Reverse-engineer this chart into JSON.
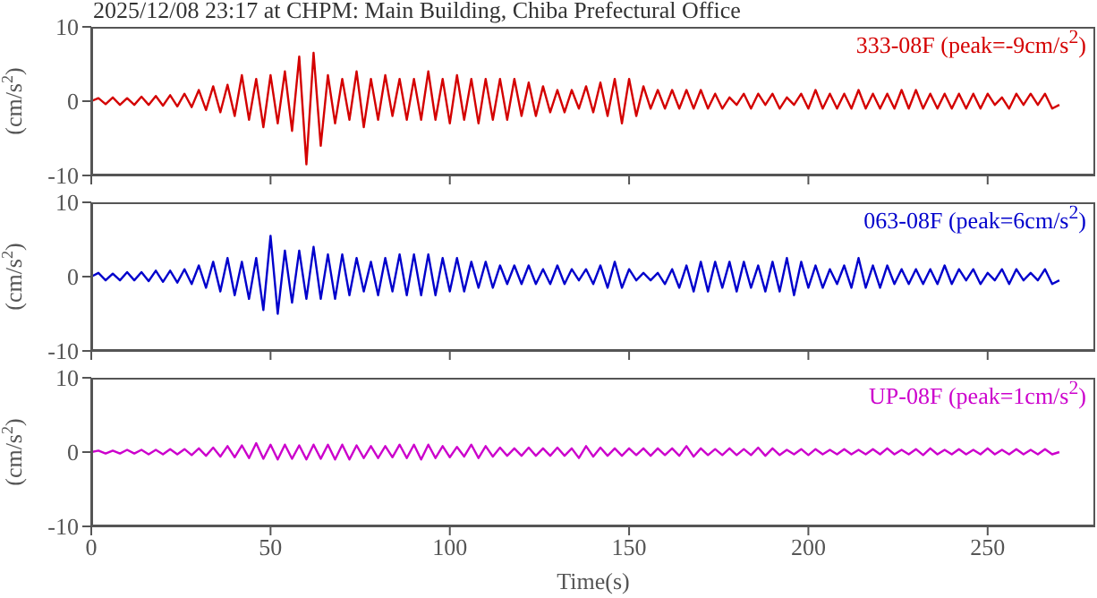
{
  "chart_data": [
    {
      "type": "line",
      "title": "2025/12/08 23:17 at CHPM: Main Building, Chiba Prefectural Office",
      "ylabel": "(cm/s$^{2}$)",
      "xlim": [
        0,
        280
      ],
      "xticks": [
        0,
        50,
        100,
        150,
        200,
        250
      ],
      "ylim": [
        -10,
        10
      ],
      "yticks": [
        -10,
        0,
        10
      ],
      "tick_labels": "y",
      "legend": false,
      "x": [
        0,
        2,
        4,
        6,
        8,
        10,
        12,
        14,
        16,
        18,
        20,
        22,
        24,
        26,
        28,
        30,
        32,
        34,
        36,
        38,
        40,
        42,
        44,
        46,
        48,
        50,
        52,
        54,
        56,
        58,
        60,
        62,
        64,
        66,
        68,
        70,
        72,
        74,
        76,
        78,
        80,
        82,
        84,
        86,
        88,
        90,
        92,
        94,
        96,
        98,
        100,
        102,
        104,
        106,
        108,
        110,
        112,
        114,
        116,
        118,
        120,
        122,
        124,
        126,
        128,
        130,
        132,
        134,
        136,
        138,
        140,
        142,
        144,
        146,
        148,
        150,
        152,
        154,
        156,
        158,
        160,
        162,
        164,
        166,
        168,
        170,
        172,
        174,
        176,
        178,
        180,
        182,
        184,
        186,
        188,
        190,
        192,
        194,
        196,
        198,
        200,
        202,
        204,
        206,
        208,
        210,
        212,
        214,
        216,
        218,
        220,
        222,
        224,
        226,
        228,
        230,
        232,
        234,
        236,
        238,
        240,
        242,
        244,
        246,
        248,
        250,
        252,
        254,
        256,
        258,
        260,
        262,
        264,
        266,
        268,
        270
      ],
      "series": [
        {
          "name": "333-08F (peak=-9cm/s$^{2}$)",
          "color": "#d40000",
          "values": [
            0,
            0.4,
            -0.4,
            0.5,
            -0.5,
            0.4,
            -0.5,
            0.6,
            -0.5,
            0.7,
            -0.6,
            0.8,
            -0.7,
            1,
            -0.8,
            1.5,
            -1.2,
            2,
            -1.5,
            2.2,
            -2,
            3.5,
            -2.5,
            3,
            -3.5,
            3.5,
            -3,
            4,
            -4,
            6,
            -8.5,
            6.5,
            -6,
            3.5,
            -3,
            3,
            -2.5,
            4,
            -3.5,
            3,
            -2.5,
            3.5,
            -2,
            3,
            -2.5,
            3,
            -2.5,
            4,
            -2.5,
            3,
            -3,
            3.5,
            -2.5,
            3,
            -3,
            3,
            -2.5,
            3,
            -2.5,
            3,
            -2,
            2.5,
            -2,
            2,
            -1.5,
            1.5,
            -1.5,
            1.5,
            -1,
            2,
            -1.5,
            2.5,
            -2,
            3,
            -3,
            3,
            -2,
            2,
            -1,
            1.5,
            -1,
            1.5,
            -1,
            1.5,
            -1,
            1.5,
            -1,
            1,
            -1,
            0.5,
            -0.5,
            1,
            -1,
            1,
            -0.5,
            1,
            -1,
            0.5,
            -0.5,
            1,
            -1,
            1.5,
            -1,
            1,
            -1,
            1,
            -1,
            1.5,
            -1,
            1,
            -1,
            1,
            -1,
            1.5,
            -1,
            1.5,
            -1,
            1,
            -1,
            1,
            -1,
            1,
            -1,
            1,
            -1,
            1,
            -0.5,
            0.5,
            -1,
            1,
            -0.5,
            1,
            -0.5,
            1,
            -1,
            -0.5
          ]
        }
      ]
    },
    {
      "type": "line",
      "ylabel": "(cm/s$^{2}$)",
      "xlim": [
        0,
        280
      ],
      "xticks": [
        0,
        50,
        100,
        150,
        200,
        250
      ],
      "ylim": [
        -10,
        10
      ],
      "yticks": [
        -10,
        0,
        10
      ],
      "tick_labels": "y",
      "legend": false,
      "x": [
        0,
        2,
        4,
        6,
        8,
        10,
        12,
        14,
        16,
        18,
        20,
        22,
        24,
        26,
        28,
        30,
        32,
        34,
        36,
        38,
        40,
        42,
        44,
        46,
        48,
        50,
        52,
        54,
        56,
        58,
        60,
        62,
        64,
        66,
        68,
        70,
        72,
        74,
        76,
        78,
        80,
        82,
        84,
        86,
        88,
        90,
        92,
        94,
        96,
        98,
        100,
        102,
        104,
        106,
        108,
        110,
        112,
        114,
        116,
        118,
        120,
        122,
        124,
        126,
        128,
        130,
        132,
        134,
        136,
        138,
        140,
        142,
        144,
        146,
        148,
        150,
        152,
        154,
        156,
        158,
        160,
        162,
        164,
        166,
        168,
        170,
        172,
        174,
        176,
        178,
        180,
        182,
        184,
        186,
        188,
        190,
        192,
        194,
        196,
        198,
        200,
        202,
        204,
        206,
        208,
        210,
        212,
        214,
        216,
        218,
        220,
        222,
        224,
        226,
        228,
        230,
        232,
        234,
        236,
        238,
        240,
        242,
        244,
        246,
        248,
        250,
        252,
        254,
        256,
        258,
        260,
        262,
        264,
        266,
        268,
        270
      ],
      "series": [
        {
          "name": "063-08F (peak=6cm/s$^{2}$)",
          "color": "#0000cc",
          "values": [
            0,
            0.5,
            -0.5,
            0.4,
            -0.5,
            0.6,
            -0.5,
            0.6,
            -0.6,
            0.8,
            -0.7,
            0.8,
            -0.8,
            1,
            -1,
            1.5,
            -1.5,
            2,
            -2,
            2.5,
            -2.5,
            2,
            -3,
            2.5,
            -4.5,
            5.5,
            -5,
            3.5,
            -3.5,
            3.5,
            -3,
            4,
            -3,
            3,
            -3,
            3,
            -2.5,
            2.5,
            -2,
            2,
            -2.5,
            2.5,
            -2,
            3,
            -2.5,
            3,
            -2.5,
            3,
            -2.5,
            2.5,
            -2,
            2.5,
            -2,
            2,
            -1.5,
            2,
            -1.5,
            1.5,
            -1,
            1.5,
            -1,
            1.5,
            -1,
            1,
            -1,
            1.5,
            -1,
            1,
            -0.5,
            1,
            -1,
            1.5,
            -1.5,
            2,
            -1.5,
            1,
            -0.5,
            0.5,
            -0.5,
            0.5,
            -1,
            1,
            -1.5,
            1.5,
            -2,
            2,
            -2,
            2,
            -1.5,
            2,
            -2,
            2,
            -1.5,
            1.5,
            -2,
            2,
            -2,
            2.5,
            -2.5,
            2,
            -1.5,
            1.5,
            -1.5,
            1,
            -1,
            1.5,
            -1.5,
            2.5,
            -1.5,
            1.5,
            -1.5,
            1.5,
            -1,
            1,
            -1,
            1,
            -1,
            1,
            -1,
            1.5,
            -1,
            1,
            -0.5,
            1,
            -1,
            0.5,
            -0.5,
            1,
            -1,
            1,
            -0.5,
            0.5,
            -0.5,
            1,
            -1,
            -0.5
          ]
        }
      ]
    },
    {
      "type": "line",
      "ylabel": "(cm/s$^{2}$)",
      "xlabel": "Time(s)",
      "xlim": [
        0,
        280
      ],
      "xticks": [
        0,
        50,
        100,
        150,
        200,
        250
      ],
      "ylim": [
        -10,
        10
      ],
      "yticks": [
        -10,
        0,
        10
      ],
      "legend": false,
      "x": [
        0,
        2,
        4,
        6,
        8,
        10,
        12,
        14,
        16,
        18,
        20,
        22,
        24,
        26,
        28,
        30,
        32,
        34,
        36,
        38,
        40,
        42,
        44,
        46,
        48,
        50,
        52,
        54,
        56,
        58,
        60,
        62,
        64,
        66,
        68,
        70,
        72,
        74,
        76,
        78,
        80,
        82,
        84,
        86,
        88,
        90,
        92,
        94,
        96,
        98,
        100,
        102,
        104,
        106,
        108,
        110,
        112,
        114,
        116,
        118,
        120,
        122,
        124,
        126,
        128,
        130,
        132,
        134,
        136,
        138,
        140,
        142,
        144,
        146,
        148,
        150,
        152,
        154,
        156,
        158,
        160,
        162,
        164,
        166,
        168,
        170,
        172,
        174,
        176,
        178,
        180,
        182,
        184,
        186,
        188,
        190,
        192,
        194,
        196,
        198,
        200,
        202,
        204,
        206,
        208,
        210,
        212,
        214,
        216,
        218,
        220,
        222,
        224,
        226,
        228,
        230,
        232,
        234,
        236,
        238,
        240,
        242,
        244,
        246,
        248,
        250,
        252,
        254,
        256,
        258,
        260,
        262,
        264,
        266,
        268,
        270
      ],
      "series": [
        {
          "name": "UP-08F (peak=1cm/s$^{2}$)",
          "color": "#cc00cc",
          "values": [
            0,
            0.2,
            -0.2,
            0.2,
            -0.2,
            0.3,
            -0.2,
            0.3,
            -0.3,
            0.3,
            -0.3,
            0.4,
            -0.3,
            0.4,
            -0.4,
            0.5,
            -0.5,
            0.6,
            -0.6,
            0.8,
            -0.7,
            0.9,
            -0.8,
            1.2,
            -0.9,
            1,
            -1,
            1,
            -0.9,
            0.9,
            -1,
            1,
            -0.9,
            1,
            -1,
            1,
            -1,
            0.9,
            -0.8,
            0.8,
            -0.8,
            0.8,
            -0.7,
            1,
            -0.8,
            1,
            -1,
            1,
            -0.8,
            0.8,
            -0.7,
            0.7,
            -0.6,
            1,
            -0.8,
            0.8,
            -0.6,
            0.6,
            -0.5,
            0.5,
            -0.5,
            0.6,
            -0.5,
            0.5,
            -0.5,
            0.6,
            -0.5,
            0.5,
            -0.8,
            0.8,
            -0.6,
            0.6,
            -0.5,
            0.5,
            -0.5,
            0.5,
            -0.4,
            0.5,
            -0.5,
            0.5,
            -0.4,
            0.5,
            -0.5,
            0.8,
            -0.6,
            0.5,
            -0.4,
            0.4,
            -0.4,
            0.5,
            -0.4,
            0.4,
            -0.4,
            0.6,
            -0.5,
            0.5,
            -0.4,
            0.3,
            -0.3,
            0.4,
            -0.4,
            0.4,
            -0.3,
            0.3,
            -0.3,
            0.4,
            -0.3,
            0.3,
            -0.3,
            0.4,
            -0.3,
            0.5,
            -0.3,
            0.3,
            -0.3,
            0.4,
            -0.4,
            0.5,
            -0.3,
            0.3,
            -0.3,
            0.4,
            -0.3,
            0.3,
            -0.3,
            0.5,
            -0.3,
            0.3,
            -0.3,
            0.4,
            -0.3,
            0.3,
            -0.3,
            0.4,
            -0.3,
            0
          ]
        }
      ]
    }
  ]
}
